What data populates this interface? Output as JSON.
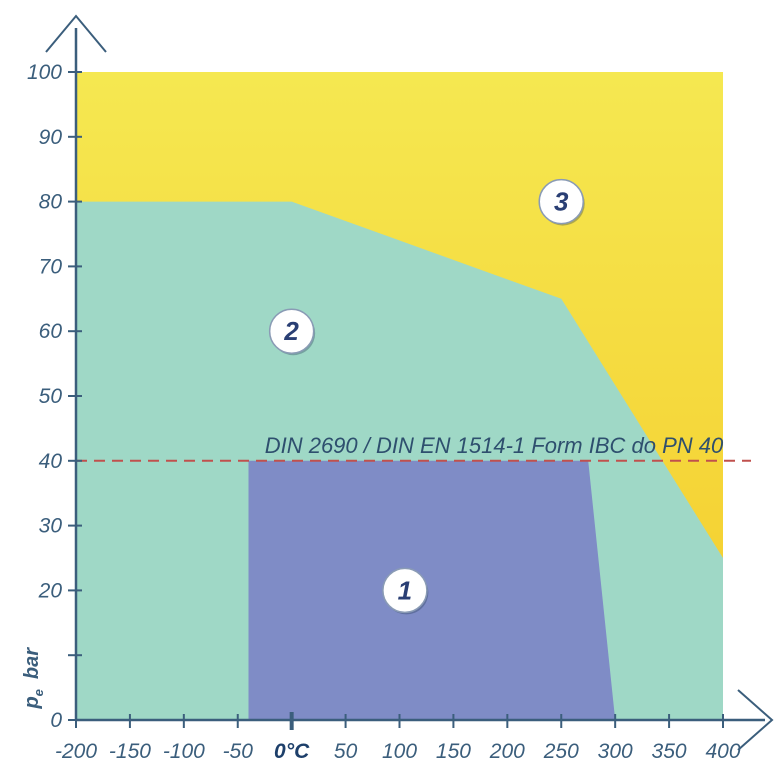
{
  "chart_data": {
    "type": "area",
    "title": "",
    "xlabel": "",
    "ylabel": "p_e bar",
    "xlim": [
      -200,
      400
    ],
    "ylim": [
      0,
      100
    ],
    "x_ticks": [
      -200,
      -150,
      -100,
      -50,
      0,
      50,
      100,
      150,
      200,
      250,
      300,
      350,
      400
    ],
    "x_tick_labels": [
      "-200",
      "-150",
      "-100",
      "-50",
      "0°C",
      "50",
      "100",
      "150",
      "200",
      "250",
      "300",
      "350",
      "400"
    ],
    "y_ticks": [
      0,
      10,
      20,
      30,
      40,
      50,
      60,
      70,
      80,
      90,
      100
    ],
    "y_tick_labels": [
      "0",
      "",
      "20",
      "30",
      "40",
      "50",
      "60",
      "70",
      "80",
      "90",
      "100"
    ],
    "y_axis_label": {
      "symbol": "p",
      "subscript": "e",
      "unit": "bar"
    },
    "grid": false,
    "regions": [
      {
        "label": "3",
        "color": "#f5e851",
        "gradient_to": "#f5cb2a",
        "points": [
          [
            -200,
            100
          ],
          [
            400,
            100
          ],
          [
            400,
            0
          ],
          [
            -200,
            0
          ]
        ]
      },
      {
        "label": "2",
        "color": "#9fd8c6",
        "points": [
          [
            -200,
            80
          ],
          [
            0,
            80
          ],
          [
            250,
            65
          ],
          [
            400,
            25
          ],
          [
            400,
            0
          ],
          [
            -200,
            0
          ]
        ]
      },
      {
        "label": "1",
        "color": "#7f8cc6",
        "points": [
          [
            -40,
            40
          ],
          [
            275,
            40
          ],
          [
            300,
            0
          ],
          [
            -40,
            0
          ]
        ]
      }
    ],
    "region_label_positions": [
      {
        "label": "1",
        "x": 105,
        "y": 20
      },
      {
        "label": "2",
        "x": 0,
        "y": 60
      },
      {
        "label": "3",
        "x": 250,
        "y": 80
      }
    ],
    "reference_line": {
      "y": 40,
      "label": "DIN 2690 / DIN EN 1514-1 Form IBC do PN 40",
      "color": "#c0504d"
    },
    "colors": {
      "axis": "#3b5e7c",
      "tick_text": "#3b5e7c",
      "badge_text": "#2a3f74"
    }
  }
}
